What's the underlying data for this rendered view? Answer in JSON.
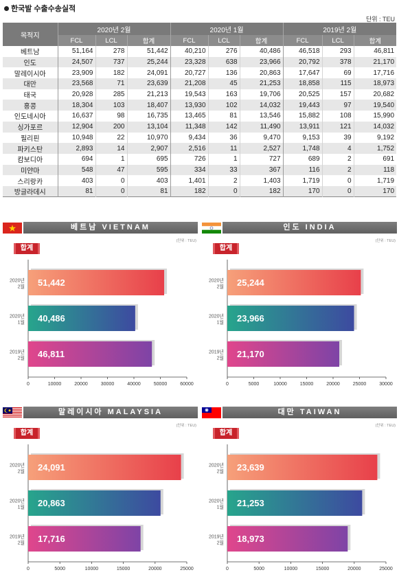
{
  "title": "한국발 수출수송실적",
  "unit": "단위 : TEU",
  "table": {
    "dest_header": "목적지",
    "groups": [
      "2020년 2월",
      "2020년 1월",
      "2019년 2월"
    ],
    "sub_headers": [
      "FCL",
      "LCL",
      "합계"
    ],
    "rows": [
      {
        "dest": "베트남",
        "v": [
          "51,164",
          "278",
          "51,442",
          "40,210",
          "276",
          "40,486",
          "46,518",
          "293",
          "46,811"
        ]
      },
      {
        "dest": "인도",
        "v": [
          "24,507",
          "737",
          "25,244",
          "23,328",
          "638",
          "23,966",
          "20,792",
          "378",
          "21,170"
        ]
      },
      {
        "dest": "말레이시아",
        "v": [
          "23,909",
          "182",
          "24,091",
          "20,727",
          "136",
          "20,863",
          "17,647",
          "69",
          "17,716"
        ]
      },
      {
        "dest": "대만",
        "v": [
          "23,568",
          "71",
          "23,639",
          "21,208",
          "45",
          "21,253",
          "18,858",
          "115",
          "18,973"
        ]
      },
      {
        "dest": "태국",
        "v": [
          "20,928",
          "285",
          "21,213",
          "19,543",
          "163",
          "19,706",
          "20,525",
          "157",
          "20,682"
        ]
      },
      {
        "dest": "홍콩",
        "v": [
          "18,304",
          "103",
          "18,407",
          "13,930",
          "102",
          "14,032",
          "19,443",
          "97",
          "19,540"
        ]
      },
      {
        "dest": "인도네시아",
        "v": [
          "16,637",
          "98",
          "16,735",
          "13,465",
          "81",
          "13,546",
          "15,882",
          "108",
          "15,990"
        ]
      },
      {
        "dest": "싱가포르",
        "v": [
          "12,904",
          "200",
          "13,104",
          "11,348",
          "142",
          "11,490",
          "13,911",
          "121",
          "14,032"
        ]
      },
      {
        "dest": "필리핀",
        "v": [
          "10,948",
          "22",
          "10,970",
          "9,434",
          "36",
          "9,470",
          "9,153",
          "39",
          "9,192"
        ]
      },
      {
        "dest": "파키스탄",
        "v": [
          "2,893",
          "14",
          "2,907",
          "2,516",
          "11",
          "2,527",
          "1,748",
          "4",
          "1,752"
        ]
      },
      {
        "dest": "캄보디아",
        "v": [
          "694",
          "1",
          "695",
          "726",
          "1",
          "727",
          "689",
          "2",
          "691"
        ]
      },
      {
        "dest": "미얀마",
        "v": [
          "548",
          "47",
          "595",
          "334",
          "33",
          "367",
          "116",
          "2",
          "118"
        ]
      },
      {
        "dest": "스리랑카",
        "v": [
          "403",
          "0",
          "403",
          "1,401",
          "2",
          "1,403",
          "1,719",
          "0",
          "1,719"
        ]
      },
      {
        "dest": "방글라데시",
        "v": [
          "81",
          "0",
          "81",
          "182",
          "0",
          "182",
          "170",
          "0",
          "170"
        ]
      }
    ]
  },
  "chart_data": [
    {
      "type": "bar",
      "title": "베트남 VIETNAM",
      "flag": "vietnam-flag",
      "unit": "(단위 : TEU)",
      "badge": "합계",
      "categories": [
        [
          "2020년",
          "2월"
        ],
        [
          "2020년",
          "1월"
        ],
        [
          "2019년",
          "2월"
        ]
      ],
      "values": [
        51442,
        40486,
        46811
      ],
      "value_labels": [
        "51,442",
        "40,486",
        "46,811"
      ],
      "xlim": [
        0,
        60000
      ],
      "ticks": [
        0,
        10000,
        20000,
        30000,
        40000,
        50000,
        60000
      ]
    },
    {
      "type": "bar",
      "title": "인도 INDIA",
      "flag": "india-flag",
      "unit": "(단위 : TEU)",
      "badge": "합계",
      "categories": [
        [
          "2020년",
          "2월"
        ],
        [
          "2020년",
          "1월"
        ],
        [
          "2019년",
          "2월"
        ]
      ],
      "values": [
        25244,
        23966,
        21170
      ],
      "value_labels": [
        "25,244",
        "23,966",
        "21,170"
      ],
      "xlim": [
        0,
        30000
      ],
      "ticks": [
        0,
        5000,
        10000,
        15000,
        20000,
        25000,
        30000
      ]
    },
    {
      "type": "bar",
      "title": "말레이시아 MALAYSIA",
      "flag": "malaysia-flag",
      "unit": "(단위 : TEU)",
      "badge": "합계",
      "categories": [
        [
          "2020년",
          "2월"
        ],
        [
          "2020년",
          "1월"
        ],
        [
          "2019년",
          "2월"
        ]
      ],
      "values": [
        24091,
        20863,
        17716
      ],
      "value_labels": [
        "24,091",
        "20,863",
        "17,716"
      ],
      "xlim": [
        0,
        25000
      ],
      "ticks": [
        0,
        5000,
        10000,
        15000,
        20000,
        25000
      ]
    },
    {
      "type": "bar",
      "title": "대만 TAIWAN",
      "flag": "taiwan-flag",
      "unit": "(단위 : TEU)",
      "badge": "합계",
      "categories": [
        [
          "2020년",
          "2월"
        ],
        [
          "2020년",
          "1월"
        ],
        [
          "2019년",
          "2월"
        ]
      ],
      "values": [
        23639,
        21253,
        18973
      ],
      "value_labels": [
        "23,639",
        "21,253",
        "18,973"
      ],
      "xlim": [
        0,
        25000
      ],
      "ticks": [
        0,
        5000,
        10000,
        15000,
        20000,
        25000
      ]
    }
  ],
  "colors": {
    "bar1": [
      "#f6a07a",
      "#e8404a"
    ],
    "bar2": [
      "#27a58c",
      "#3d4aa0"
    ],
    "bar3": [
      "#e0468c",
      "#7e44a6"
    ],
    "badge": "#c8232b",
    "header": "#7a7a7a"
  }
}
